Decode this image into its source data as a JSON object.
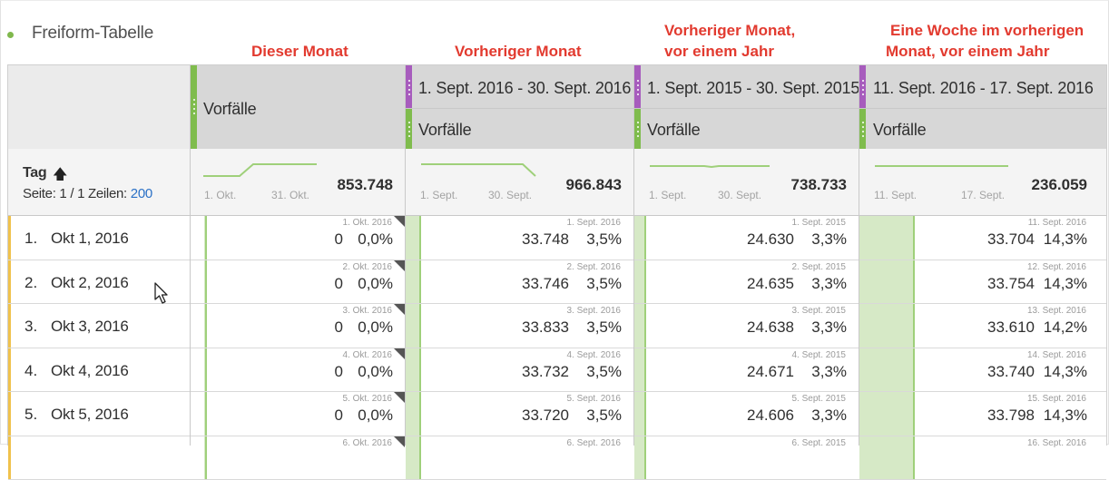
{
  "panel": {
    "title": "Freiform-Tabelle"
  },
  "annotations": {
    "col1": "Dieser Monat",
    "col2": "Vorheriger Monat",
    "col3_line1": "Vorheriger Monat,",
    "col3_line2": "vor einem Jahr",
    "col4_line1": "Eine Woche im vorherigen",
    "col4_line2": "Monat, vor einem Jahr"
  },
  "columns": [
    {
      "metric": "Vorfälle",
      "date_range": "",
      "total": "853.748",
      "spark_start": "1. Okt.",
      "spark_end": "31. Okt."
    },
    {
      "metric": "Vorfälle",
      "date_range": "1. Sept. 2016 - 30. Sept. 2016",
      "total": "966.843",
      "spark_start": "1. Sept.",
      "spark_end": "30. Sept."
    },
    {
      "metric": "Vorfälle",
      "date_range": "1. Sept. 2015 - 30. Sept. 2015",
      "total": "738.733",
      "spark_start": "1. Sept.",
      "spark_end": "30. Sept."
    },
    {
      "metric": "Vorfälle",
      "date_range": "11. Sept. 2016 - 17. Sept. 2016",
      "total": "236.059",
      "spark_start": "11. Sept.",
      "spark_end": "17. Sept."
    }
  ],
  "dimension": {
    "label": "Tag",
    "page_prefix": "Seite: 1 / 1  Zeilen: ",
    "rows_per_page": "200"
  },
  "rows": [
    {
      "num": "1.",
      "label": "Okt 1, 2016",
      "cells": [
        {
          "date": "1. Okt. 2016",
          "value": "0",
          "pct": "0,0%"
        },
        {
          "date": "1. Sept. 2016",
          "value": "33.748",
          "pct": "3,5%"
        },
        {
          "date": "1. Sept. 2015",
          "value": "24.630",
          "pct": "3,3%"
        },
        {
          "date": "11. Sept. 2016",
          "value": "33.704",
          "pct": "14,3%"
        }
      ]
    },
    {
      "num": "2.",
      "label": "Okt 2, 2016",
      "cells": [
        {
          "date": "2. Okt. 2016",
          "value": "0",
          "pct": "0,0%"
        },
        {
          "date": "2. Sept. 2016",
          "value": "33.746",
          "pct": "3,5%"
        },
        {
          "date": "2. Sept. 2015",
          "value": "24.635",
          "pct": "3,3%"
        },
        {
          "date": "12. Sept. 2016",
          "value": "33.754",
          "pct": "14,3%"
        }
      ]
    },
    {
      "num": "3.",
      "label": "Okt 3, 2016",
      "cells": [
        {
          "date": "3. Okt. 2016",
          "value": "0",
          "pct": "0,0%"
        },
        {
          "date": "3. Sept. 2016",
          "value": "33.833",
          "pct": "3,5%"
        },
        {
          "date": "3. Sept. 2015",
          "value": "24.638",
          "pct": "3,3%"
        },
        {
          "date": "13. Sept. 2016",
          "value": "33.610",
          "pct": "14,2%"
        }
      ]
    },
    {
      "num": "4.",
      "label": "Okt 4, 2016",
      "cells": [
        {
          "date": "4. Okt. 2016",
          "value": "0",
          "pct": "0,0%"
        },
        {
          "date": "4. Sept. 2016",
          "value": "33.732",
          "pct": "3,5%"
        },
        {
          "date": "4. Sept. 2015",
          "value": "24.671",
          "pct": "3,3%"
        },
        {
          "date": "14. Sept. 2016",
          "value": "33.740",
          "pct": "14,3%"
        }
      ]
    },
    {
      "num": "5.",
      "label": "Okt 5, 2016",
      "cells": [
        {
          "date": "5. Okt. 2016",
          "value": "0",
          "pct": "0,0%"
        },
        {
          "date": "5. Sept. 2016",
          "value": "33.720",
          "pct": "3,5%"
        },
        {
          "date": "5. Sept. 2015",
          "value": "24.606",
          "pct": "3,3%"
        },
        {
          "date": "15. Sept. 2016",
          "value": "33.798",
          "pct": "14,3%"
        }
      ]
    },
    {
      "num": "",
      "label": "",
      "cells": [
        {
          "date": "6. Okt. 2016",
          "value": "",
          "pct": ""
        },
        {
          "date": "6. Sept. 2016",
          "value": "",
          "pct": ""
        },
        {
          "date": "6. Sept. 2015",
          "value": "",
          "pct": ""
        },
        {
          "date": "16. Sept. 2016",
          "value": "",
          "pct": ""
        }
      ]
    }
  ],
  "colors": {
    "accent_green": "#7fbc4d",
    "segment_purple": "#a75cbd",
    "annotation_red": "#e23a2f",
    "link_blue": "#2b71c6",
    "row_marker_yellow": "#f0c24c"
  },
  "icons": {
    "sort": "arrow-up-icon",
    "cursor": "mouse-pointer-icon",
    "panel_status": "green-dot-icon"
  }
}
